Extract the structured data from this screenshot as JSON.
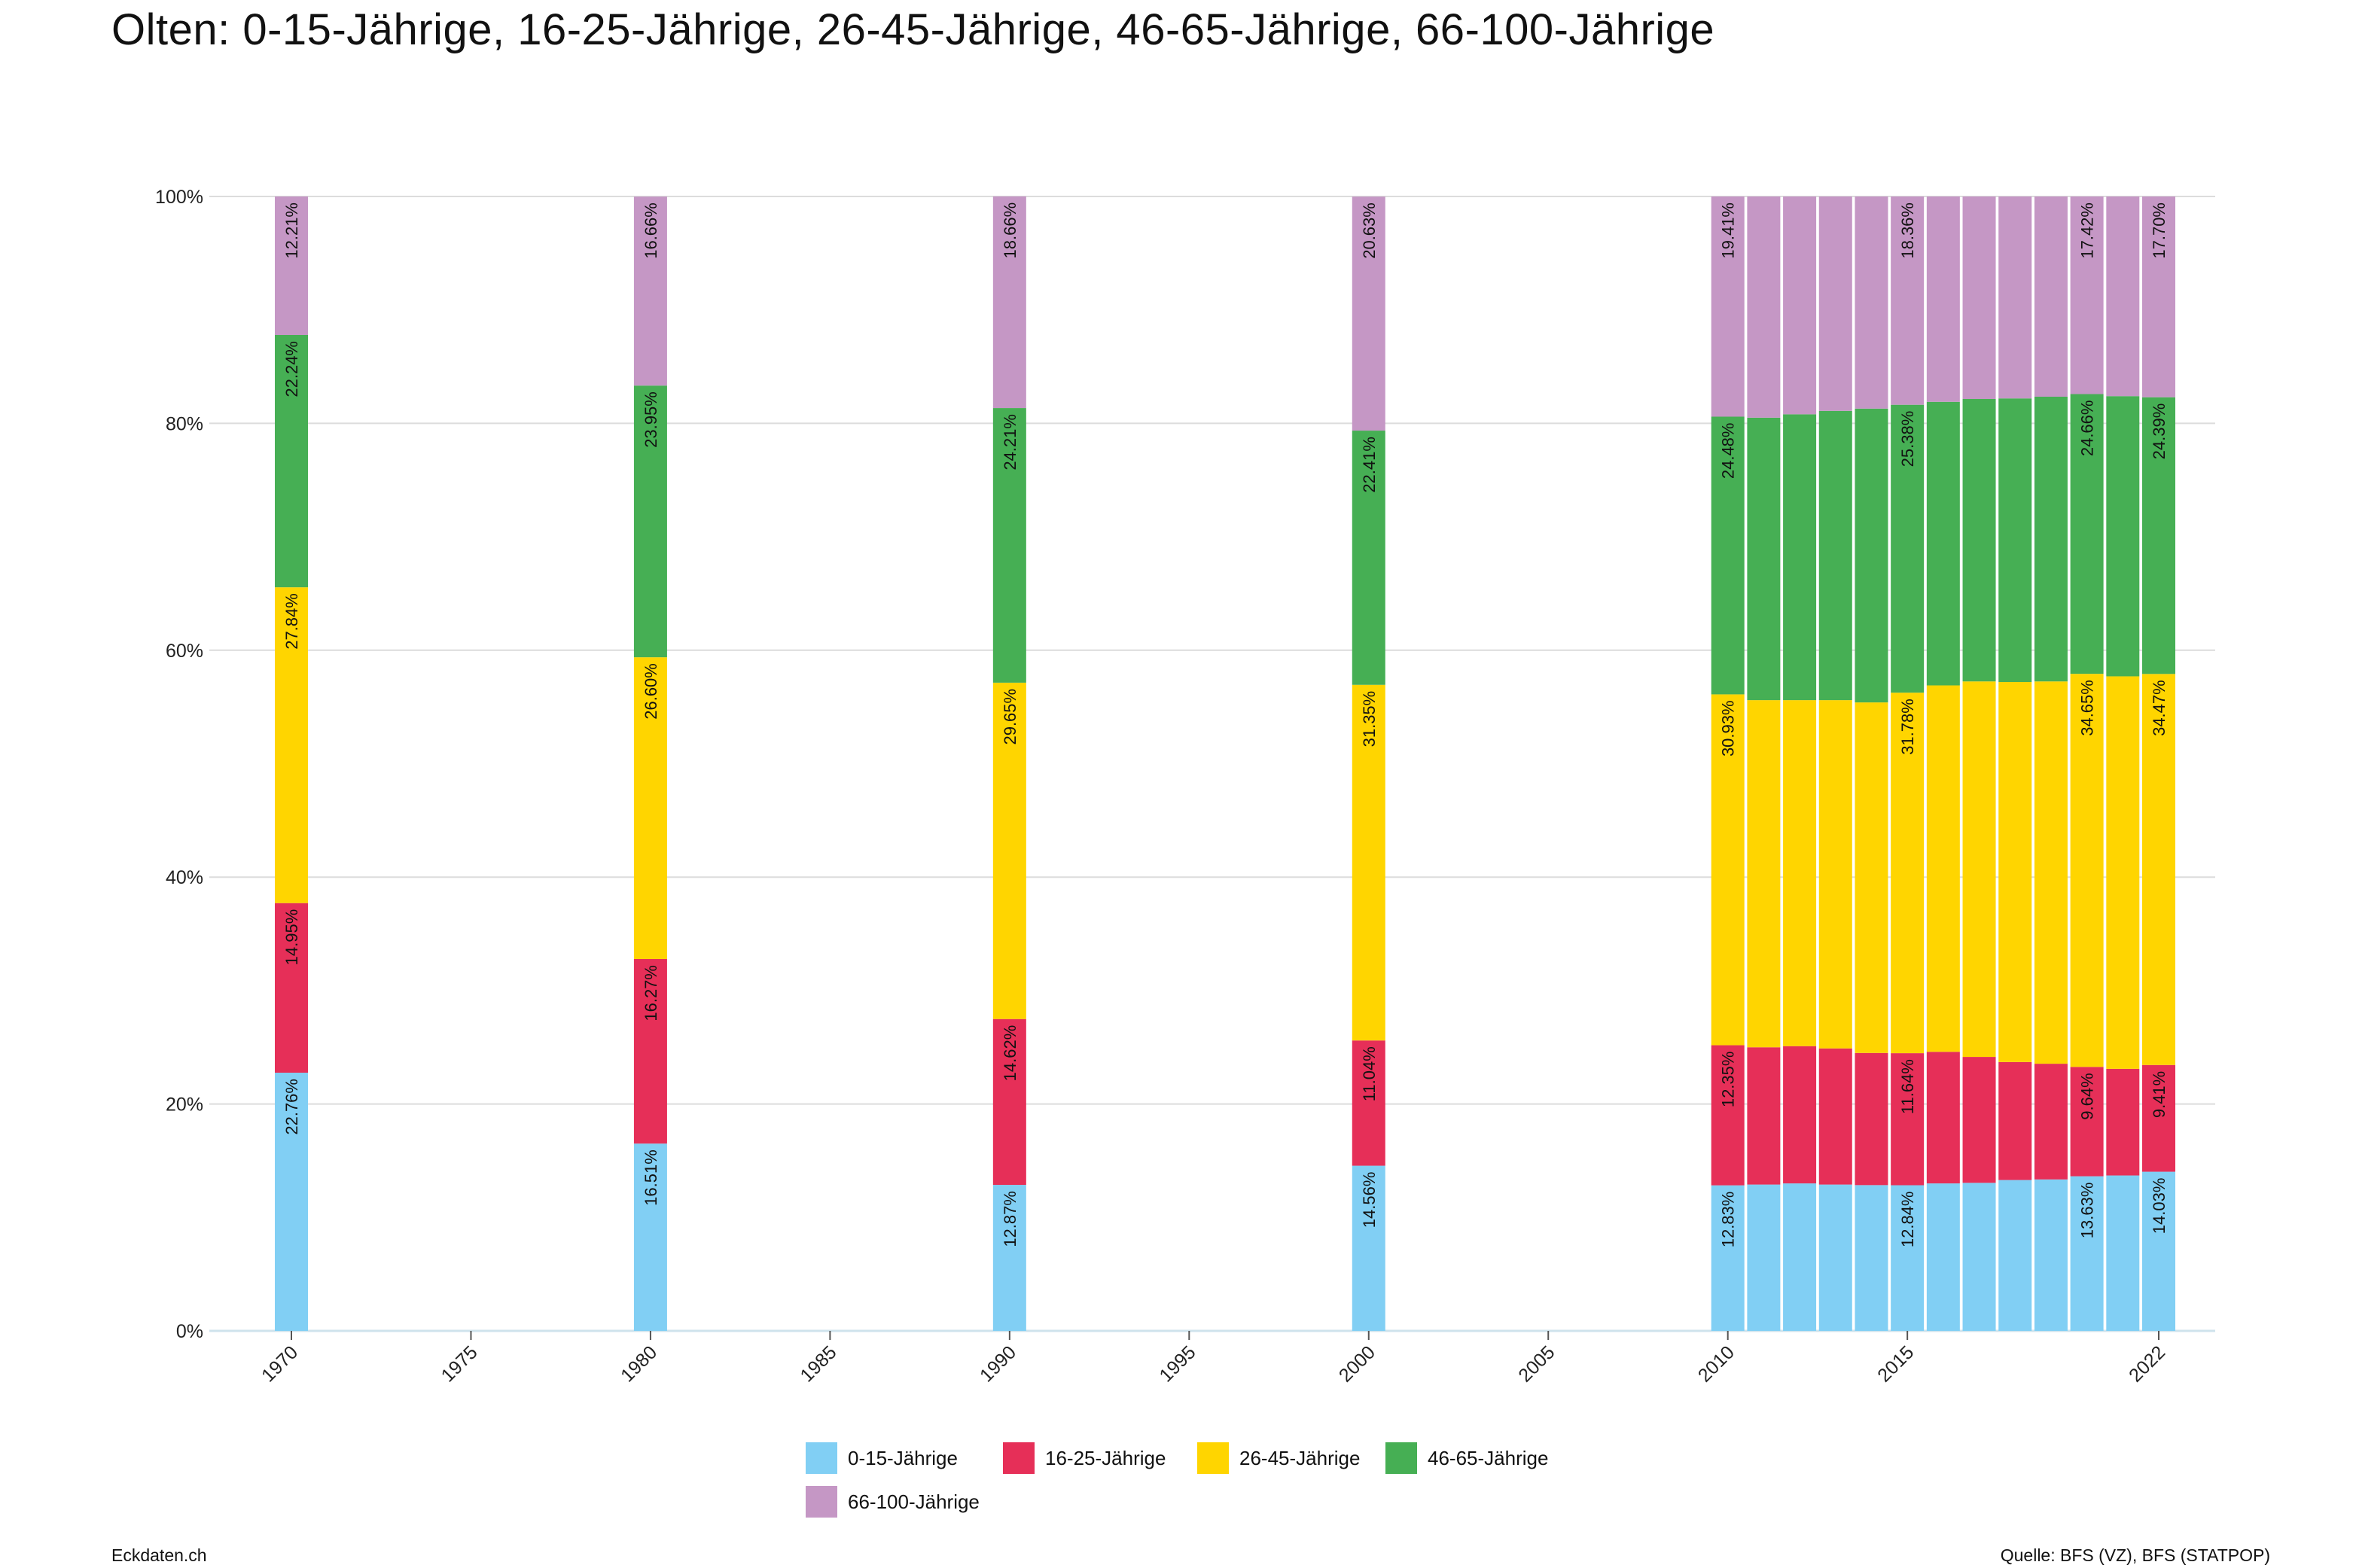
{
  "title": "Olten: 0-15-Jährige, 16-25-Jährige, 26-45-Jährige, 46-65-Jährige, 66-100-Jährige",
  "footer": {
    "left": "Eckdaten.ch",
    "right": "Quelle: BFS (VZ), BFS (STATPOP)"
  },
  "chart_data": {
    "type": "bar",
    "stacked": true,
    "x_range": [
      1970,
      2022
    ],
    "x_ticks": [
      "1970",
      "1975",
      "1980",
      "1985",
      "1990",
      "1995",
      "2000",
      "2005",
      "2010",
      "2015",
      "2022"
    ],
    "y_ticks": [
      "0%",
      "20%",
      "40%",
      "60%",
      "80%",
      "100%"
    ],
    "ylim": [
      0,
      100
    ],
    "grid": true,
    "legend_position": "bottom",
    "categories": [
      1970,
      1980,
      1990,
      2000,
      2010,
      2011,
      2012,
      2013,
      2014,
      2015,
      2016,
      2017,
      2018,
      2019,
      2020,
      2021,
      2022
    ],
    "series": [
      {
        "name": "0-15-Jährige",
        "color": "#81CFF4",
        "values": [
          22.76,
          16.51,
          12.87,
          14.56,
          12.83,
          12.9,
          13.0,
          12.9,
          12.85,
          12.84,
          13.0,
          13.05,
          13.3,
          13.35,
          13.63,
          13.7,
          14.03
        ]
      },
      {
        "name": "16-25-Jährige",
        "color": "#E62F58",
        "values": [
          14.95,
          16.27,
          14.62,
          11.04,
          12.35,
          12.1,
          12.1,
          12.0,
          11.65,
          11.64,
          11.6,
          11.1,
          10.4,
          10.2,
          9.64,
          9.4,
          9.41
        ]
      },
      {
        "name": "26-45-Jährige",
        "color": "#FFD500",
        "values": [
          27.84,
          26.6,
          29.65,
          31.35,
          30.93,
          30.6,
          30.5,
          30.7,
          30.9,
          31.78,
          32.3,
          33.1,
          33.5,
          33.7,
          34.65,
          34.6,
          34.47
        ]
      },
      {
        "name": "46-65-Jährige",
        "color": "#46AF54",
        "values": [
          22.24,
          23.95,
          24.21,
          22.41,
          24.48,
          24.9,
          25.2,
          25.5,
          25.9,
          25.38,
          25.0,
          24.9,
          25.0,
          25.1,
          24.66,
          24.7,
          24.39
        ]
      },
      {
        "name": "66-100-Jährige",
        "color": "#C597C5",
        "values": [
          12.21,
          16.66,
          18.66,
          20.63,
          19.41,
          19.5,
          19.2,
          18.9,
          18.7,
          18.36,
          18.1,
          17.85,
          17.8,
          17.65,
          17.42,
          17.6,
          17.7
        ]
      }
    ],
    "labeled_years": [
      1970,
      1980,
      1990,
      2000,
      2010,
      2015,
      2020,
      2022
    ]
  }
}
